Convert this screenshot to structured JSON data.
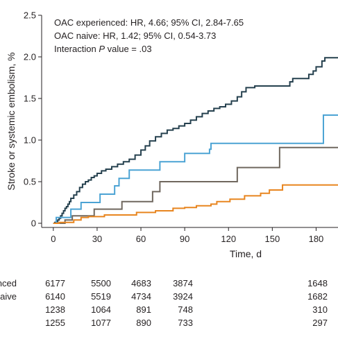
{
  "chart_data": {
    "type": "line",
    "step": true,
    "xlabel": "Time, d",
    "ylabel": "Stroke or systemic embolism, %",
    "xlim": [
      -8,
      195
    ],
    "ylim": [
      -0.05,
      2.5
    ],
    "xticks": [
      0,
      30,
      60,
      90,
      120,
      150,
      180
    ],
    "yticks": [
      0,
      0.5,
      1.0,
      1.5,
      2.0,
      2.5
    ],
    "ytick_labels": [
      "0",
      "0.5",
      "1.0",
      "1.5",
      "2.0",
      "2.5"
    ],
    "grid": false,
    "annotations": [
      {
        "prefix": "OAC experienced: HR, 4.66; 95% CI, 2.84-7.65",
        "italic": "",
        "suffix": ""
      },
      {
        "prefix": "OAC naive: HR, 1.42; 95% CI, 0.54-3.73",
        "italic": "",
        "suffix": ""
      },
      {
        "prefix": "Interaction ",
        "italic": "P",
        "suffix": " value = .03"
      }
    ],
    "series": [
      {
        "color": "#25404e",
        "x": [
          0,
          1,
          2,
          3,
          4,
          5,
          6,
          7,
          8,
          9,
          10,
          11,
          12,
          14,
          16,
          18,
          20,
          22,
          24,
          26,
          28,
          30,
          33,
          36,
          40,
          44,
          48,
          52,
          56,
          60,
          63,
          66,
          70,
          74,
          78,
          82,
          86,
          90,
          94,
          98,
          102,
          106,
          110,
          114,
          118,
          122,
          126,
          129,
          132,
          138,
          145,
          152,
          158,
          162,
          164,
          170,
          175,
          178,
          180,
          184,
          186,
          190,
          195
        ],
        "y": [
          0,
          0.01,
          0.02,
          0.04,
          0.06,
          0.09,
          0.12,
          0.15,
          0.18,
          0.2,
          0.23,
          0.26,
          0.3,
          0.34,
          0.38,
          0.43,
          0.47,
          0.5,
          0.52,
          0.55,
          0.57,
          0.6,
          0.63,
          0.65,
          0.68,
          0.71,
          0.74,
          0.77,
          0.82,
          0.88,
          0.93,
          0.99,
          1.04,
          1.08,
          1.12,
          1.14,
          1.17,
          1.2,
          1.24,
          1.28,
          1.32,
          1.35,
          1.38,
          1.4,
          1.43,
          1.47,
          1.52,
          1.58,
          1.63,
          1.65,
          1.65,
          1.65,
          1.65,
          1.7,
          1.74,
          1.74,
          1.79,
          1.83,
          1.88,
          1.95,
          1.99,
          1.99,
          1.99
        ]
      },
      {
        "color": "#4ba3d4",
        "x": [
          0,
          2,
          8,
          12,
          19,
          32,
          42,
          45,
          52,
          73,
          90,
          107,
          108,
          130,
          160,
          180,
          185,
          195
        ],
        "y": [
          0,
          0.07,
          0.07,
          0.17,
          0.25,
          0.35,
          0.45,
          0.54,
          0.64,
          0.74,
          0.84,
          0.89,
          0.96,
          0.96,
          0.96,
          0.96,
          1.3,
          1.3
        ]
      },
      {
        "color": "#6f675e",
        "x": [
          0,
          8,
          13,
          28,
          47,
          68,
          73,
          126,
          127,
          155,
          195
        ],
        "y": [
          0,
          0.04,
          0.09,
          0.17,
          0.26,
          0.38,
          0.5,
          0.67,
          0.67,
          0.91,
          0.91
        ]
      },
      {
        "color": "#e8851f",
        "x": [
          0,
          4,
          14,
          19,
          24,
          35,
          57,
          70,
          82,
          90,
          98,
          108,
          112,
          121,
          131,
          142,
          148,
          157,
          195
        ],
        "y": [
          0,
          0.01,
          0.04,
          0.07,
          0.08,
          0.1,
          0.13,
          0.15,
          0.18,
          0.19,
          0.21,
          0.23,
          0.26,
          0.29,
          0.33,
          0.36,
          0.4,
          0.46,
          0.46
        ]
      }
    ],
    "risk_table": {
      "rows": [
        {
          "label": "OAC experienced",
          "values": [
            "6177",
            "5500",
            "4683",
            "3874",
            "1648"
          ]
        },
        {
          "label": "OAC naive",
          "values": [
            "6140",
            "5519",
            "4734",
            "3924",
            "1682"
          ]
        },
        {
          "label": "",
          "values": [
            "1238",
            "1064",
            "891",
            "748",
            "310"
          ]
        },
        {
          "label": "",
          "values": [
            "1255",
            "1077",
            "890",
            "733",
            "297"
          ]
        }
      ],
      "columns_days": [
        0,
        30,
        60,
        90,
        180
      ]
    }
  }
}
